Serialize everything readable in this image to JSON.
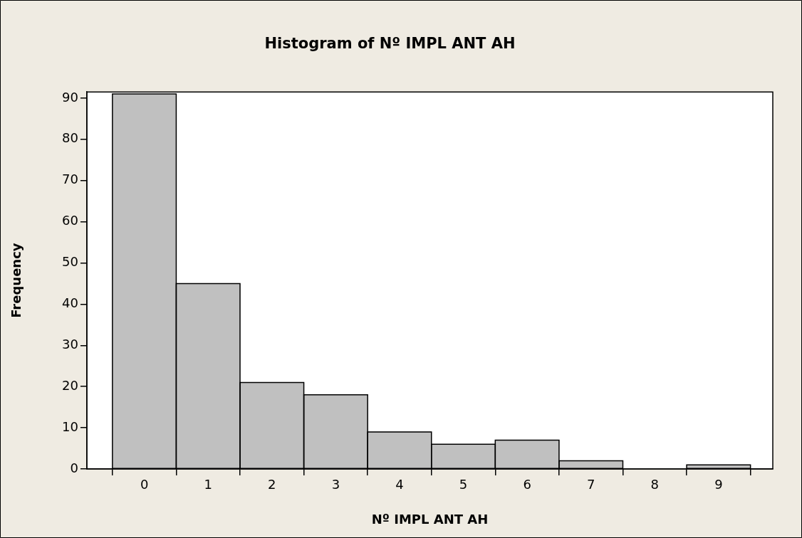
{
  "chart_data": {
    "type": "histogram",
    "title": "Histogram of Nº IMPL ANT AH",
    "xlabel": "Nº IMPL ANT AH",
    "ylabel": "Frequency",
    "bins": [
      -0.5,
      0.5,
      1.5,
      2.5,
      3.5,
      4.5,
      5.5,
      6.5,
      7.5,
      8.5,
      9.5
    ],
    "values": [
      91,
      45,
      21,
      18,
      9,
      6,
      7,
      2,
      0,
      1
    ],
    "color": "#c0c0c0",
    "xlim": [
      -0.9,
      9.85
    ],
    "xticks": [
      0,
      1,
      2,
      3,
      4,
      5,
      6,
      7,
      8,
      9
    ],
    "ylim": [
      0,
      91.5
    ],
    "yticks": [
      0,
      10,
      20,
      30,
      40,
      50,
      60,
      70,
      80,
      90
    ],
    "grid": false,
    "legend": false
  }
}
